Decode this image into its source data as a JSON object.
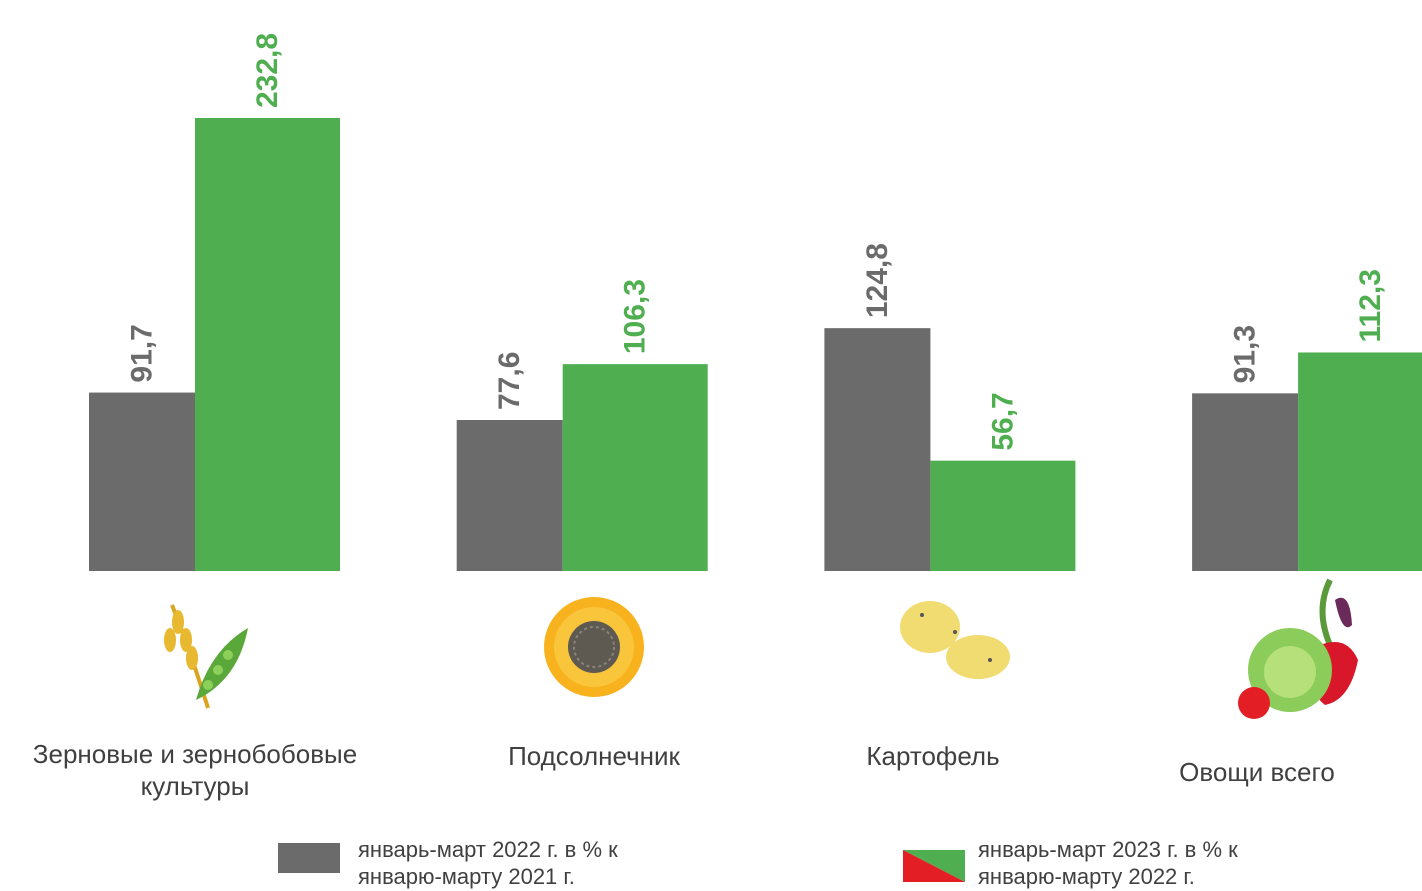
{
  "chart_data": {
    "type": "bar",
    "categories": [
      "Зерновые и зернобобовые культуры",
      "Подсолнечник",
      "Картофель",
      "Овощи всего"
    ],
    "series": [
      {
        "name": "январь-март 2022 г. в % к январю-марту 2021 г.",
        "color": "#6b6b6b",
        "values": [
          91.7,
          77.6,
          124.8,
          91.3
        ],
        "value_labels": [
          "91,7",
          "77,6",
          "124,8",
          "91,3"
        ]
      },
      {
        "name": "январь-март 2023 г. в % к январю-марту 2022 г.",
        "color": "#4fae4f",
        "values": [
          232.8,
          106.3,
          56.7,
          112.3
        ],
        "value_labels": [
          "232,8",
          "106,3",
          "56,7",
          "112,3"
        ]
      }
    ]
  }
}
